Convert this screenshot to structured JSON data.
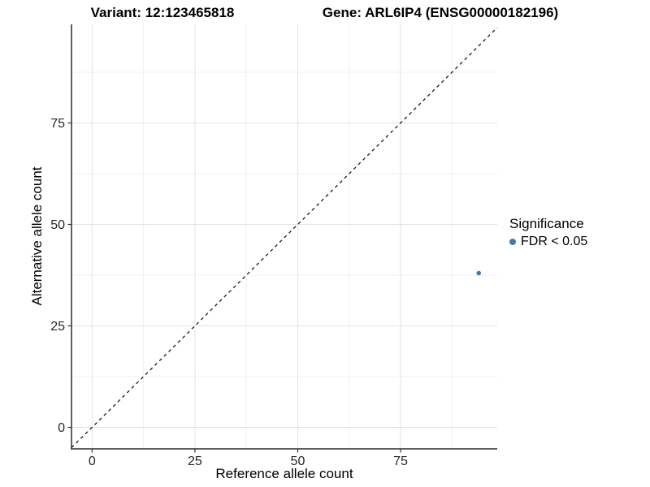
{
  "chart_data": {
    "type": "scatter",
    "titles": {
      "variant": "Variant: 12:123465818",
      "gene": "Gene: ARL6IP4 (ENSG00000182196)"
    },
    "xlabel": "Reference allele count",
    "ylabel": "Alternative allele count",
    "xlim": [
      -5,
      98.5
    ],
    "ylim": [
      -5.3,
      99.3
    ],
    "xticks": [
      0,
      25,
      50,
      75
    ],
    "yticks": [
      0,
      25,
      50,
      75
    ],
    "minor_xticks": [
      12.5,
      37.5,
      62.5,
      87.5
    ],
    "minor_yticks": [
      12.5,
      37.5,
      62.5,
      87.5
    ],
    "grid": "major+minor",
    "identity_line": {
      "style": "dashed",
      "color": "#1a1a1a",
      "from": -5,
      "to": 98.5
    },
    "series": [
      {
        "name": "FDR < 0.05",
        "color": "#4678B0",
        "points": [
          {
            "x": 94,
            "y": 38
          }
        ]
      }
    ],
    "legend": {
      "title": "Significance",
      "position": "right",
      "items": [
        {
          "label": "FDR < 0.05",
          "color": "#4678B0"
        }
      ]
    },
    "colors": {
      "grid_major": "#e3e3e3",
      "grid_minor": "#f0f0f0",
      "axis": "#2a2a2a",
      "tick": "#333333"
    }
  }
}
